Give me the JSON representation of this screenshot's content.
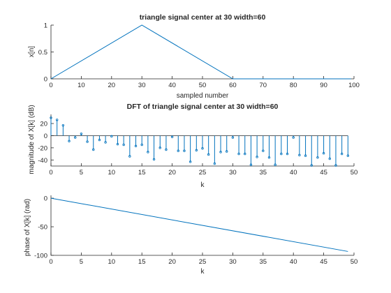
{
  "chart_data": [
    {
      "type": "line",
      "title": "triangle signal center at 30 width=60",
      "xlabel": "sampled number",
      "ylabel": "x[n]",
      "xlim": [
        0,
        100
      ],
      "ylim": [
        0,
        1
      ],
      "xticks": [
        0,
        10,
        20,
        30,
        40,
        50,
        60,
        70,
        80,
        90,
        100
      ],
      "yticks": [
        0,
        0.5,
        1
      ],
      "color": "#0072BD",
      "series": [
        {
          "x": [
            0,
            30,
            60,
            99
          ],
          "y": [
            0,
            1,
            0,
            0
          ]
        }
      ]
    },
    {
      "type": "stem",
      "title": "DFT of triangle signal center at 30 width=60",
      "xlabel": "k",
      "ylabel": "magnitude of X[k] (dB)",
      "xlim": [
        0,
        50
      ],
      "ylim": [
        -50,
        35
      ],
      "xticks": [
        0,
        5,
        10,
        15,
        20,
        25,
        30,
        35,
        40,
        45,
        50
      ],
      "yticks": [
        -40,
        -20,
        0,
        20
      ],
      "color": "#0072BD",
      "series": [
        {
          "x": [
            0,
            1,
            2,
            3,
            4,
            5,
            6,
            7,
            8,
            9,
            10,
            11,
            12,
            13,
            14,
            15,
            16,
            17,
            18,
            19,
            20,
            21,
            22,
            23,
            24,
            25,
            26,
            27,
            28,
            29,
            30,
            31,
            32,
            33,
            34,
            35,
            36,
            37,
            38,
            39,
            40,
            41,
            42,
            43,
            44,
            45,
            46,
            47,
            48,
            49
          ],
          "y": [
            29.5,
            26,
            17,
            -9,
            -3,
            3,
            -10,
            -23,
            -7,
            -11,
            -1,
            -14,
            -15,
            -34,
            -17,
            -15,
            -27,
            -39,
            -20,
            -23,
            -2,
            -25,
            -25,
            -43,
            -24,
            -21,
            -31,
            -46,
            -27,
            -26,
            -3,
            -30,
            -30,
            -48,
            -35,
            -25,
            -36,
            -48,
            -30,
            -30,
            -3,
            -32,
            -33,
            -49,
            -36,
            -29,
            -38,
            -49,
            -30,
            -33
          ]
        }
      ]
    },
    {
      "type": "line",
      "title": "",
      "xlabel": "k",
      "ylabel": "phase of X[k] (rad)",
      "xlim": [
        0,
        50
      ],
      "ylim": [
        -100,
        5
      ],
      "xticks": [
        0,
        5,
        10,
        15,
        20,
        25,
        30,
        35,
        40,
        45,
        50
      ],
      "yticks": [
        -100,
        -50,
        0
      ],
      "color": "#0072BD",
      "series": [
        {
          "x": [
            0,
            49
          ],
          "y": [
            0,
            -93.2
          ]
        }
      ]
    }
  ]
}
